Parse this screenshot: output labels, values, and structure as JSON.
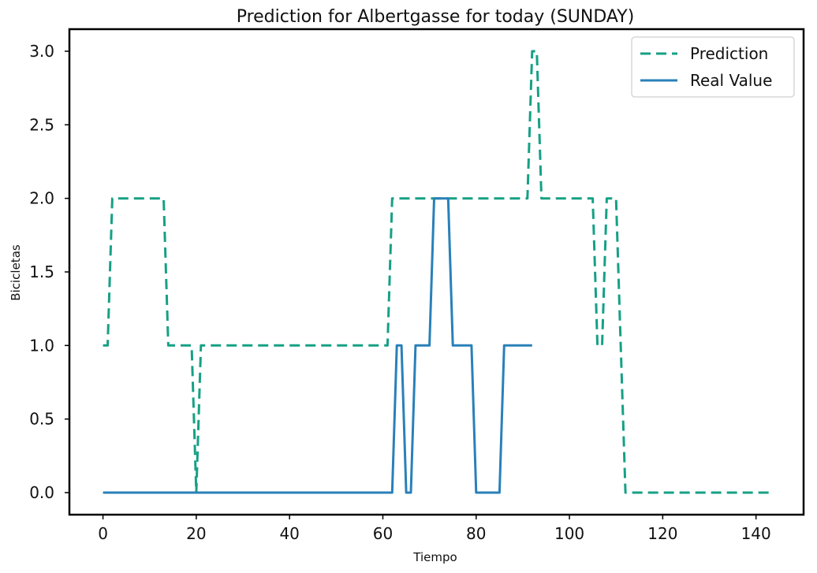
{
  "chart_data": {
    "type": "line",
    "title": "Prediction for Albertgasse for today (SUNDAY)",
    "xlabel": "Tiempo",
    "ylabel": "Bicicletas",
    "xlim": [
      -7.2,
      150.2
    ],
    "ylim": [
      -0.15,
      3.15
    ],
    "xticks": [
      0,
      20,
      40,
      60,
      80,
      100,
      120,
      140
    ],
    "yticks": [
      0.0,
      0.5,
      1.0,
      1.5,
      2.0,
      2.5,
      3.0
    ],
    "ytick_labels": [
      "0.0",
      "0.5",
      "1.0",
      "1.5",
      "2.0",
      "2.5",
      "3.0"
    ],
    "grid": false,
    "legend_position": "top-right",
    "series": [
      {
        "name": "Prediction",
        "color": "#16a085",
        "style": "dashed",
        "x": [
          0,
          1,
          2,
          13,
          14,
          19,
          20,
          21,
          61,
          62,
          91,
          92,
          93,
          94,
          105,
          106,
          107,
          108,
          110,
          111,
          112,
          143
        ],
        "y": [
          1,
          1,
          2,
          2,
          1,
          1,
          0,
          1,
          1,
          2,
          2,
          3,
          3,
          2,
          2,
          1,
          1,
          2,
          2,
          1,
          0,
          0
        ]
      },
      {
        "name": "Real Value",
        "color": "#2980b9",
        "style": "solid",
        "x": [
          0,
          62,
          63,
          64,
          65,
          66,
          67,
          70,
          71,
          74,
          75,
          79,
          80,
          85,
          86,
          92
        ],
        "y": [
          0,
          0,
          1,
          1,
          0,
          0,
          1,
          1,
          2,
          2,
          1,
          1,
          0,
          0,
          1,
          1
        ]
      }
    ]
  }
}
